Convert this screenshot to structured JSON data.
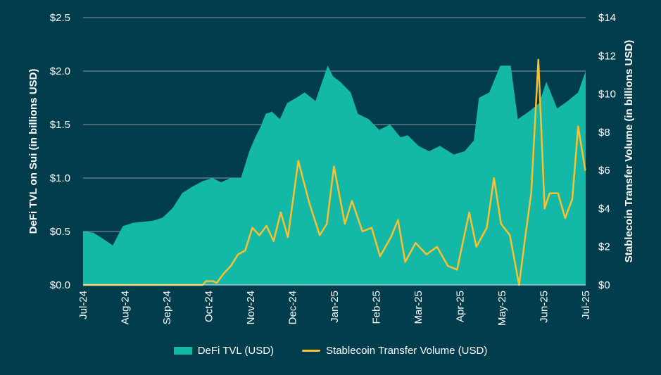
{
  "chart_data": {
    "type": "area",
    "title": "",
    "xlabel": "",
    "ylabel": "DeFi TVL on Sui (in billions USD)",
    "y2label": "Stablecoin Transfer Volume (in billions USD)",
    "ylim": [
      0,
      2.5
    ],
    "y2lim": [
      0,
      14
    ],
    "yticks": [
      "$0.0",
      "$0.5",
      "$1.0",
      "$1.5",
      "$2.0",
      "$2.5"
    ],
    "yticks_values": [
      0,
      0.5,
      1.0,
      1.5,
      2.0,
      2.5
    ],
    "y2ticks": [
      "$0",
      "$2",
      "$4",
      "$6",
      "$8",
      "$10",
      "$12",
      "$14"
    ],
    "y2ticks_values": [
      0,
      2,
      4,
      6,
      8,
      10,
      12,
      14
    ],
    "xticks": [
      "Jul-24",
      "Aug-24",
      "Sep-24",
      "Oct-24",
      "Nov-24",
      "Dec-24",
      "Jan-25",
      "Feb-25",
      "Mar-25",
      "Apr-25",
      "May-25",
      "Jun-25",
      "Jul-25"
    ],
    "xrange_months": [
      0,
      12
    ],
    "grid": "horizontal",
    "legend_position": "bottom",
    "series": [
      {
        "name": "DeFi TVL (USD)",
        "type": "area",
        "axis": "left",
        "color": "#14b8a6",
        "x_months": [
          0,
          0.24,
          0.48,
          0.71,
          0.95,
          1.19,
          1.43,
          1.67,
          1.9,
          2.14,
          2.37,
          2.61,
          2.85,
          3.09,
          3.29,
          3.53,
          3.77,
          3.97,
          4.11,
          4.24,
          4.36,
          4.51,
          4.7,
          4.87,
          5.09,
          5.29,
          5.55,
          5.84,
          5.97,
          6.14,
          6.39,
          6.56,
          6.82,
          7.07,
          7.33,
          7.58,
          7.75,
          8.01,
          8.26,
          8.52,
          8.85,
          9.11,
          9.33,
          9.45,
          9.7,
          9.96,
          10.21,
          10.38,
          10.64,
          10.89,
          11.06,
          11.32,
          11.57,
          11.82,
          12.0
        ],
        "values": [
          0.5,
          0.49,
          0.43,
          0.37,
          0.55,
          0.58,
          0.59,
          0.6,
          0.63,
          0.72,
          0.86,
          0.92,
          0.97,
          1.0,
          0.96,
          1.0,
          1.0,
          1.25,
          1.38,
          1.48,
          1.6,
          1.62,
          1.55,
          1.7,
          1.75,
          1.8,
          1.72,
          2.05,
          1.95,
          1.9,
          1.8,
          1.6,
          1.55,
          1.45,
          1.5,
          1.38,
          1.4,
          1.3,
          1.25,
          1.3,
          1.22,
          1.25,
          1.35,
          1.75,
          1.8,
          2.05,
          2.05,
          1.55,
          1.62,
          1.7,
          1.9,
          1.65,
          1.72,
          1.8,
          2.0
        ]
      },
      {
        "name": "Stablecoin Transfer Volume (USD)",
        "type": "line",
        "axis": "right",
        "color": "#fbc02d",
        "x_months": [
          0,
          2.85,
          2.94,
          3.11,
          3.19,
          3.36,
          3.53,
          3.7,
          3.87,
          4.04,
          4.21,
          4.38,
          4.55,
          4.72,
          4.89,
          5.14,
          5.4,
          5.65,
          5.82,
          5.99,
          6.25,
          6.42,
          6.67,
          6.89,
          7.09,
          7.35,
          7.52,
          7.69,
          7.94,
          8.2,
          8.45,
          8.71,
          8.93,
          9.22,
          9.39,
          9.64,
          9.81,
          9.98,
          10.19,
          10.41,
          10.55,
          10.7,
          10.87,
          11.02,
          11.14,
          11.34,
          11.51,
          11.68,
          11.82,
          11.99,
          12.0
        ],
        "values": [
          0.0,
          0.0,
          0.2,
          0.2,
          0.1,
          0.6,
          1.0,
          1.6,
          1.8,
          3.0,
          2.6,
          3.1,
          2.3,
          3.8,
          2.5,
          6.5,
          4.3,
          2.6,
          3.2,
          6.2,
          3.2,
          4.4,
          2.8,
          3.0,
          1.5,
          2.5,
          3.4,
          1.2,
          2.2,
          1.6,
          2.0,
          1.0,
          0.8,
          3.8,
          2.0,
          3.0,
          5.6,
          3.2,
          2.6,
          0.0,
          2.4,
          4.8,
          11.8,
          4.0,
          4.8,
          4.8,
          3.5,
          4.5,
          8.3,
          6.0,
          6.0
        ]
      }
    ]
  },
  "legend": {
    "tvl_label": "DeFi TVL (USD)",
    "stablecoin_label": "Stablecoin Transfer Volume (USD)",
    "tvl_color": "#14b8a6",
    "stablecoin_color": "#fbc02d"
  }
}
